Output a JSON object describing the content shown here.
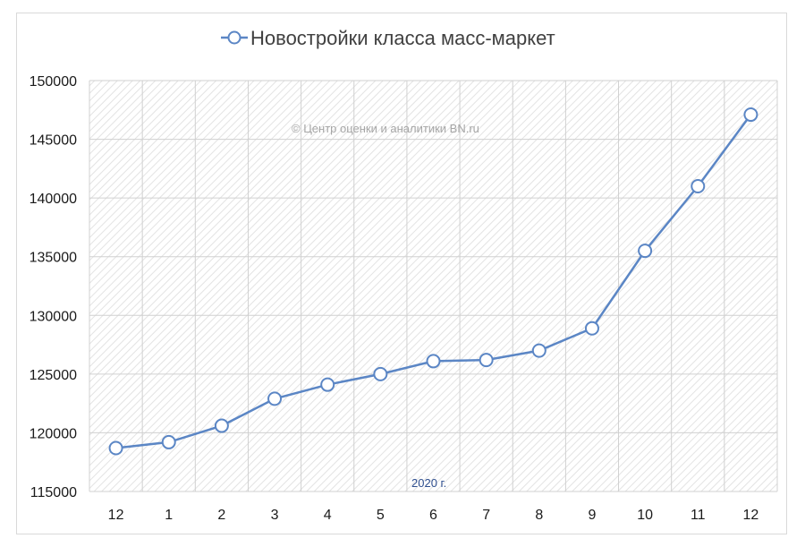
{
  "chart_data": {
    "type": "line",
    "title": "Новостройки класса масс-маркет",
    "watermark": "© Центр оценки и аналитики BN.ru",
    "x_annotation": "2020 г.",
    "categories": [
      "12",
      "1",
      "2",
      "3",
      "4",
      "5",
      "6",
      "7",
      "8",
      "9",
      "10",
      "11",
      "12"
    ],
    "series": [
      {
        "name": "Новостройки класса масс-маркет",
        "color": "#5b86c5",
        "marker": "circle-hollow",
        "values": [
          118700,
          119200,
          120600,
          122900,
          124100,
          125000,
          126100,
          126200,
          127000,
          128900,
          135500,
          141000,
          147100
        ]
      }
    ],
    "ylim": [
      115000,
      150000
    ],
    "yticks": [
      115000,
      120000,
      125000,
      130000,
      135000,
      140000,
      145000,
      150000
    ],
    "grid": true,
    "plot_background": "hatched-light-gray",
    "legend": "top-center"
  }
}
